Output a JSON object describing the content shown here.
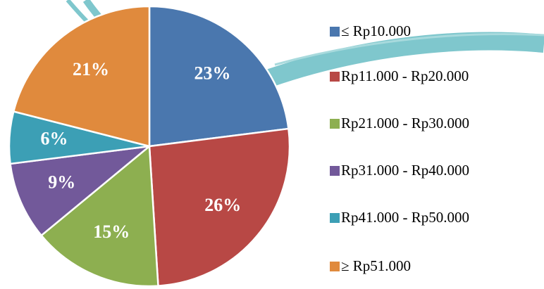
{
  "chart_data": {
    "type": "pie",
    "categories": [
      "≤ Rp10.000",
      "Rp11.000 - Rp20.000",
      "Rp21.000 - Rp30.000",
      "Rp31.000 - Rp40.000",
      "Rp41.000 - Rp50.000",
      "≥ Rp51.000"
    ],
    "values": [
      23,
      26,
      15,
      9,
      6,
      21
    ],
    "value_labels": [
      "23%",
      "26%",
      "15%",
      "9%",
      "6%",
      "21%"
    ],
    "colors": [
      "#4a77ae",
      "#b84845",
      "#8daf50",
      "#72599a",
      "#3c9fb5",
      "#e08a3d"
    ]
  }
}
